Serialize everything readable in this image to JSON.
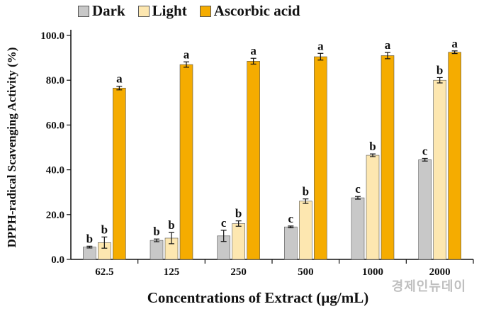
{
  "chart_data": {
    "type": "bar",
    "title": "",
    "xlabel": "Concentrations of Extract (µg/mL)",
    "ylabel": "DPPH-radical Scavenging Activity (%)",
    "ylim": [
      0,
      100
    ],
    "yticks": [
      "0.0",
      "20.0",
      "40.0",
      "60.0",
      "80.0",
      "100.0"
    ],
    "categories": [
      "62.5",
      "125",
      "250",
      "500",
      "1000",
      "2000"
    ],
    "legend_position": "top",
    "grid": false,
    "series": [
      {
        "name": "Dark",
        "color": "#c8c8c8",
        "values": [
          5.5,
          8.5,
          10.5,
          14.5,
          27.5,
          44.5
        ],
        "errors": [
          0.4,
          0.6,
          2.5,
          0.4,
          0.6,
          0.6
        ],
        "labels": [
          "b",
          "b",
          "c",
          "c",
          "c",
          "c"
        ]
      },
      {
        "name": "Light",
        "color": "#fde7b0",
        "values": [
          7.5,
          9.5,
          16,
          26,
          46.5,
          80
        ],
        "errors": [
          2.5,
          2.5,
          1.2,
          1.0,
          0.6,
          1.2
        ],
        "labels": [
          "b",
          "b",
          "b",
          "b",
          "b",
          "b"
        ]
      },
      {
        "name": "Ascorbic acid",
        "color": "#f5ac00",
        "values": [
          76.5,
          87,
          88.5,
          90.5,
          91,
          92.5
        ],
        "errors": [
          0.8,
          1.2,
          1.3,
          1.5,
          1.4,
          0.6
        ],
        "labels": [
          "a",
          "a",
          "a",
          "a",
          "a",
          "a"
        ]
      }
    ]
  },
  "watermark": "경제인뉴데이"
}
